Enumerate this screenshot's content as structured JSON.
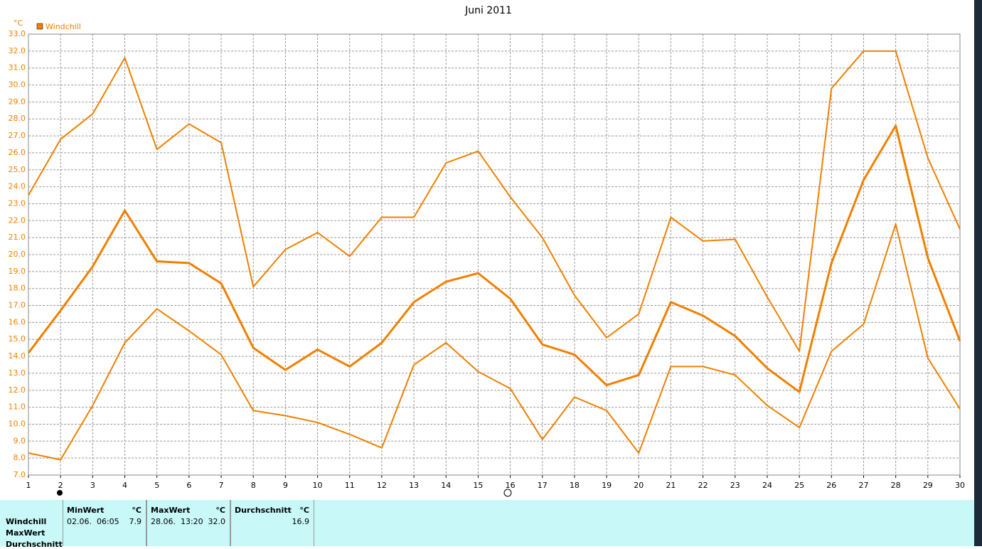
{
  "chart_data": {
    "type": "line",
    "title": "Juni 2011",
    "y_unit": "°C",
    "legend": "top-left",
    "grid": true,
    "x": [
      1,
      2,
      3,
      4,
      5,
      6,
      7,
      8,
      9,
      10,
      11,
      12,
      13,
      14,
      15,
      16,
      17,
      18,
      19,
      20,
      21,
      22,
      23,
      24,
      25,
      26,
      27,
      28,
      29,
      30
    ],
    "xlim": [
      1,
      30
    ],
    "xticks": [
      1,
      2,
      3,
      4,
      5,
      6,
      7,
      8,
      9,
      10,
      11,
      12,
      13,
      14,
      15,
      16,
      17,
      18,
      19,
      20,
      21,
      22,
      23,
      24,
      25,
      26,
      27,
      28,
      29,
      30
    ],
    "ylim": [
      7,
      33
    ],
    "yticks": [
      {
        "value": 7,
        "label": "7.0"
      },
      {
        "value": 8,
        "label": "8.0"
      },
      {
        "value": 9,
        "label": "9.0"
      },
      {
        "value": 10,
        "label": "10.0"
      },
      {
        "value": 11,
        "label": "11.0"
      },
      {
        "value": 12,
        "label": "12.0"
      },
      {
        "value": 13,
        "label": "13.0"
      },
      {
        "value": 14,
        "label": "14.0"
      },
      {
        "value": 15,
        "label": "15.0"
      },
      {
        "value": 16,
        "label": "16.0"
      },
      {
        "value": 17,
        "label": "17.0"
      },
      {
        "value": 18,
        "label": "18.0"
      },
      {
        "value": 19,
        "label": "19.0"
      },
      {
        "value": 20,
        "label": "20.0"
      },
      {
        "value": 21,
        "label": "21.0"
      },
      {
        "value": 22,
        "label": "22.0"
      },
      {
        "value": 23,
        "label": "23.0"
      },
      {
        "value": 24,
        "label": "24.0"
      },
      {
        "value": 25,
        "label": "25.0"
      },
      {
        "value": 26,
        "label": "26.0"
      },
      {
        "value": 27,
        "label": "27.0"
      },
      {
        "value": 28,
        "label": "28.0"
      },
      {
        "value": 29,
        "label": "29.0"
      },
      {
        "value": 30,
        "label": "30.0"
      },
      {
        "value": 31,
        "label": "31.0"
      },
      {
        "value": 32,
        "label": "32.0"
      },
      {
        "value": 33,
        "label": "33.0"
      }
    ],
    "series": [
      {
        "name": "Windchill",
        "color": "#f08000",
        "width": 3,
        "values": [
          14.2,
          16.7,
          19.3,
          22.6,
          19.6,
          19.5,
          18.3,
          14.5,
          13.2,
          14.4,
          13.4,
          14.8,
          17.2,
          18.4,
          18.9,
          17.4,
          14.7,
          14.1,
          12.3,
          12.9,
          17.2,
          16.4,
          15.2,
          13.3,
          11.9,
          19.5,
          24.4,
          27.6,
          19.8,
          14.9
        ]
      },
      {
        "color": "#f08000",
        "width": 2,
        "values": [
          23.5,
          26.8,
          28.3,
          31.6,
          26.2,
          27.7,
          26.6,
          18.1,
          20.3,
          21.3,
          19.9,
          22.2,
          22.2,
          25.4,
          26.1,
          23.4,
          21.0,
          17.6,
          15.1,
          16.5,
          22.2,
          20.8,
          20.9,
          17.5,
          14.3,
          29.8,
          32.0,
          32.0,
          25.7,
          21.5
        ]
      },
      {
        "color": "#f08000",
        "width": 2,
        "values": [
          8.3,
          7.9,
          11.1,
          14.8,
          16.8,
          15.5,
          14.1,
          10.8,
          10.5,
          10.1,
          9.4,
          8.6,
          13.5,
          14.8,
          13.1,
          12.1,
          9.1,
          11.6,
          10.8,
          8.3,
          13.4,
          13.4,
          12.9,
          11.1,
          9.8,
          14.3,
          15.9,
          21.8,
          13.9,
          10.9
        ]
      }
    ]
  },
  "stats_table": {
    "row_labels": [
      "Windchill",
      "MaxWert",
      "Durchschnitt"
    ],
    "columns": [
      {
        "header": "MinWert",
        "unit": "°C",
        "time": "02.06.  06:05",
        "value": "7.9"
      },
      {
        "header": "MaxWert",
        "unit": "°C",
        "time": "28.06.  13:20",
        "value": "32.0"
      },
      {
        "header": "Durchschnitt",
        "unit": "°C",
        "value": "16.9"
      }
    ]
  }
}
